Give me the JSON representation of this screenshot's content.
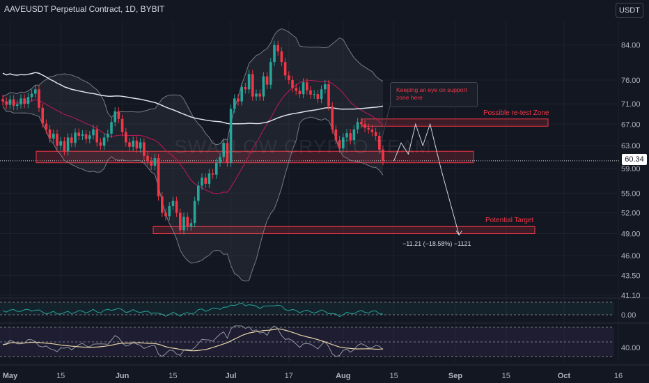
{
  "header": {
    "title": "AAVEUSDT Perpetual Contract, 1D, BYBIT",
    "currency_button": "USDT"
  },
  "watermark": "SWALLOW CRYPTO TEAM",
  "annotations": {
    "callout": "Keeping an eye on support zone here",
    "retest_zone_label": "Possible re-test Zone",
    "target_label": "Potential Target",
    "measure_label": "−11.21 (−18.58%) −1121"
  },
  "colors": {
    "background": "#131722",
    "up": "#26a69a",
    "down": "#f23645",
    "band": "#787b86",
    "ma_slow": "#e0e3eb",
    "zone": "#f23645"
  },
  "chart_data": [
    {
      "type": "candlestick",
      "symbol": "AAVEUSDT",
      "interval": "1D",
      "exchange": "BYBIT",
      "y_scale": "log",
      "ylim": [
        41,
        90
      ],
      "y_ticks": [
        "84.00",
        "76.00",
        "71.00",
        "67.00",
        "63.00",
        "59.00",
        "55.00",
        "52.00",
        "49.00",
        "46.00",
        "43.50",
        "41.10"
      ],
      "x_ticks": [
        "May",
        "15",
        "Jun",
        "15",
        "Jul",
        "17",
        "Aug",
        "15",
        "Sep",
        "15",
        "Oct",
        "16"
      ],
      "last_price": "60.34",
      "support_zone": [
        60.0,
        62.0
      ],
      "retest_zone": [
        66.6,
        68.0
      ],
      "target_zone": [
        49.0,
        50.0
      ],
      "projected_path": [
        {
          "date": "2024-08-15",
          "price": 60.3
        },
        {
          "date": "2024-08-17",
          "price": 63.5
        },
        {
          "date": "2024-08-19",
          "price": 61.5
        },
        {
          "date": "2024-08-21",
          "price": 67.0
        },
        {
          "date": "2024-08-23",
          "price": 63.0
        },
        {
          "date": "2024-08-25",
          "price": 67.0
        },
        {
          "date": "2024-08-28",
          "price": 59.0
        },
        {
          "date": "2024-09-02",
          "price": 48.8
        }
      ],
      "candles_close": [
        71.5,
        70.8,
        71.9,
        70.6,
        70.9,
        72.1,
        71.0,
        72.4,
        73.1,
        74.0,
        70.2,
        67.1,
        66.0,
        64.3,
        65.2,
        63.0,
        63.8,
        62.0,
        64.5,
        63.5,
        65.4,
        64.8,
        65.1,
        64.2,
        64.9,
        66.0,
        63.6,
        63.0,
        64.5,
        65.2,
        67.4,
        69.5,
        68.0,
        65.5,
        63.6,
        62.8,
        63.9,
        62.5,
        63.6,
        61.2,
        60.3,
        59.5,
        60.8,
        54.5,
        52.0,
        51.5,
        53.0,
        53.8,
        52.0,
        49.5,
        51.4,
        50.0,
        50.5,
        53.8,
        56.2,
        57.5,
        56.5,
        58.2,
        58.0,
        60.0,
        61.0,
        63.5,
        60.0,
        70.0,
        72.1,
        71.5,
        74.5,
        74.0,
        77.3,
        72.5,
        73.1,
        72.5,
        76.8,
        75.0,
        80.0,
        84.0,
        82.5,
        80.0,
        77.0,
        76.0,
        74.3,
        73.7,
        73.0,
        75.5,
        73.8,
        72.9,
        73.0,
        72.0,
        74.0,
        75.1,
        70.5,
        66.0,
        64.0,
        62.5,
        64.5,
        65.3,
        64.0,
        66.0,
        67.4,
        67.0,
        66.3,
        66.0,
        65.5,
        64.8,
        62.3,
        60.3
      ]
    },
    {
      "type": "line",
      "name": "oscillator",
      "y_ticks": [
        "0.00"
      ]
    },
    {
      "type": "line",
      "name": "rsi",
      "y_ticks": [
        "40.00"
      ]
    }
  ]
}
